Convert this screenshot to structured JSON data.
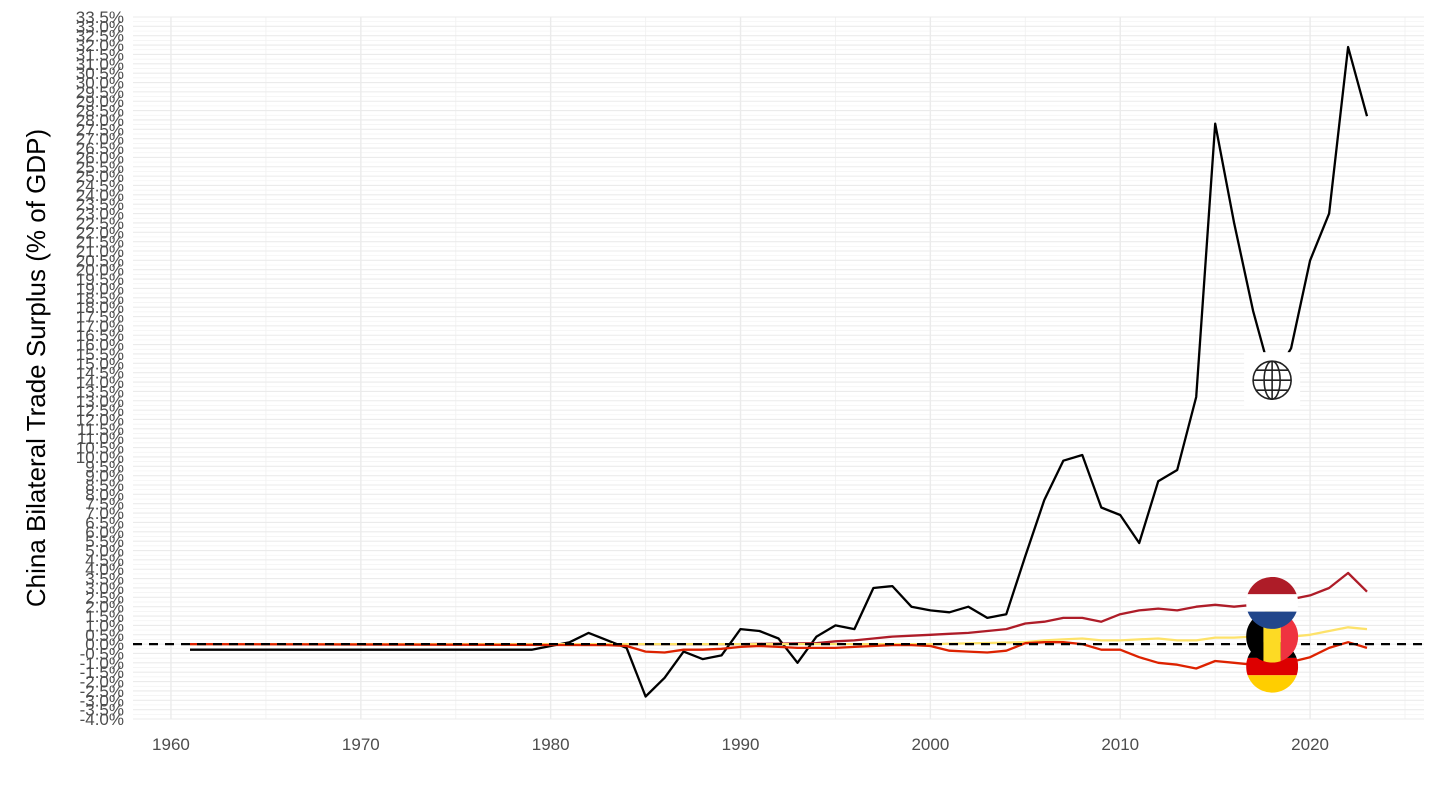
{
  "chart_data": {
    "type": "line",
    "title": "",
    "xlabel": "",
    "ylabel": "China Bilateral Trade Surplus (% of GDP)",
    "xlim": [
      1958,
      2026
    ],
    "ylim": [
      -4.0,
      33.5
    ],
    "x_ticks": [
      1960,
      1970,
      1980,
      1990,
      2000,
      2010,
      2020
    ],
    "x_tick_labels": [
      "1960",
      "1970",
      "1980",
      "1990",
      "2000",
      "2010",
      "2020"
    ],
    "y_ticks": [
      -4.0,
      -3.5,
      -3.0,
      -2.5,
      -2.0,
      -1.5,
      -1.0,
      -0.5,
      0.0,
      0.5,
      1.0,
      1.5,
      2.0,
      2.5,
      3.0,
      3.5,
      4.0,
      4.5,
      5.0,
      5.5,
      6.0,
      6.5,
      7.0,
      7.5,
      8.0,
      8.5,
      9.0,
      9.5,
      10.0,
      10.5,
      11.0,
      11.5,
      12.0,
      12.5,
      13.0,
      13.5,
      14.0,
      14.5,
      15.0,
      15.5,
      16.0,
      16.5,
      17.0,
      17.5,
      18.0,
      18.5,
      19.0,
      19.5,
      20.0,
      20.5,
      21.0,
      21.5,
      22.0,
      22.5,
      23.0,
      23.5,
      24.0,
      24.5,
      25.0,
      25.5,
      26.0,
      26.5,
      27.0,
      27.5,
      28.0,
      28.5,
      29.0,
      29.5,
      30.0,
      30.5,
      31.0,
      31.5,
      32.0,
      32.5,
      33.0,
      33.5
    ],
    "y_tick_labels": [
      "-4.0%",
      "-3.5%",
      "-3.0%",
      "-2.5%",
      "-2.0%",
      "-1.5%",
      "-1.0%",
      "-0.5%",
      "0.0%",
      "0.5%",
      "1.0%",
      "1.5%",
      "2.0%",
      "2.5%",
      "3.0%",
      "3.5%",
      "4.0%",
      "4.5%",
      "5.0%",
      "5.5%",
      "6.0%",
      "6.5%",
      "7.0%",
      "7.5%",
      "8.0%",
      "8.5%",
      "9.0%",
      "9.5%",
      "10.0%",
      "10.5%",
      "11.0%",
      "11.5%",
      "12.0%",
      "12.5%",
      "13.0%",
      "13.5%",
      "14.0%",
      "14.5%",
      "15.0%",
      "15.5%",
      "16.0%",
      "16.5%",
      "17.0%",
      "17.5%",
      "18.0%",
      "18.5%",
      "19.0%",
      "19.5%",
      "20.0%",
      "20.5%",
      "21.0%",
      "21.5%",
      "22.0%",
      "22.5%",
      "23.0%",
      "23.5%",
      "24.0%",
      "24.5%",
      "25.0%",
      "25.5%",
      "26.0%",
      "26.5%",
      "27.0%",
      "27.5%",
      "28.0%",
      "28.5%",
      "29.0%",
      "29.5%",
      "30.0%",
      "30.5%",
      "31.0%",
      "31.5%",
      "32.0%",
      "32.5%",
      "33.0%",
      "33.5%"
    ],
    "reference_line": {
      "y": 0,
      "style": "dashed",
      "color": "#000000"
    },
    "grid": true,
    "legend": "none",
    "series": [
      {
        "color": "#000000",
        "marker_icon": "globe-icon",
        "x": [
          1961,
          1979,
          1980,
          1981,
          1982,
          1983,
          1984,
          1985,
          1986,
          1987,
          1988,
          1989,
          1990,
          1991,
          1992,
          1993,
          1994,
          1995,
          1996,
          1997,
          1998,
          1999,
          2000,
          2001,
          2002,
          2003,
          2004,
          2005,
          2006,
          2007,
          2008,
          2009,
          2010,
          2011,
          2012,
          2013,
          2014,
          2015,
          2016,
          2017,
          2018,
          2019,
          2020,
          2021,
          2022,
          2023
        ],
        "y": [
          -0.3,
          -0.3,
          -0.1,
          0.1,
          0.6,
          0.2,
          -0.2,
          -2.8,
          -1.8,
          -0.4,
          -0.8,
          -0.6,
          0.8,
          0.7,
          0.3,
          -1.0,
          0.4,
          1.0,
          0.8,
          3.0,
          3.1,
          2.0,
          1.8,
          1.7,
          2.0,
          1.4,
          1.6,
          4.7,
          7.7,
          9.8,
          10.1,
          7.3,
          6.9,
          5.4,
          8.7,
          9.3,
          13.2,
          27.8,
          22.5,
          17.8,
          14.1,
          15.8,
          20.5,
          23.0,
          31.9,
          28.2
        ]
      },
      {
        "color": "#ae1c28",
        "marker_icon": "netherlands-flag-icon",
        "x": [
          1961,
          1990,
          1994,
          1995,
          1996,
          1997,
          1998,
          1999,
          2000,
          2001,
          2002,
          2003,
          2004,
          2005,
          2006,
          2007,
          2008,
          2009,
          2010,
          2011,
          2012,
          2013,
          2014,
          2015,
          2016,
          2017,
          2018,
          2019,
          2020,
          2021,
          2022,
          2023
        ],
        "y": [
          0.0,
          0.0,
          0.05,
          0.15,
          0.2,
          0.3,
          0.4,
          0.45,
          0.5,
          0.55,
          0.6,
          0.7,
          0.8,
          1.1,
          1.2,
          1.4,
          1.4,
          1.2,
          1.6,
          1.8,
          1.9,
          1.8,
          2.0,
          2.1,
          2.0,
          2.1,
          2.2,
          2.4,
          2.6,
          3.0,
          3.8,
          2.8
        ]
      },
      {
        "color": "#fde26a",
        "marker_icon": "belgium-flag-icon",
        "x": [
          1961,
          1995,
          2000,
          2005,
          2006,
          2007,
          2008,
          2009,
          2010,
          2011,
          2012,
          2013,
          2014,
          2015,
          2016,
          2017,
          2018,
          2019,
          2020,
          2021,
          2022,
          2023
        ],
        "y": [
          0.0,
          0.0,
          0.0,
          0.1,
          0.2,
          0.25,
          0.3,
          0.2,
          0.2,
          0.25,
          0.3,
          0.2,
          0.2,
          0.35,
          0.35,
          0.4,
          0.4,
          0.4,
          0.5,
          0.7,
          0.9,
          0.8
        ]
      },
      {
        "color": "#dd2200",
        "marker_icon": "germany-flag-icon",
        "x": [
          1961,
          1983,
          1984,
          1985,
          1986,
          1987,
          1988,
          1989,
          1990,
          1991,
          1992,
          1993,
          1994,
          1995,
          1996,
          1997,
          1998,
          1999,
          2000,
          2001,
          2002,
          2003,
          2004,
          2005,
          2006,
          2007,
          2008,
          2009,
          2010,
          2011,
          2012,
          2013,
          2014,
          2015,
          2016,
          2017,
          2018,
          2019,
          2020,
          2021,
          2022,
          2023
        ],
        "y": [
          0.0,
          -0.05,
          -0.1,
          -0.4,
          -0.45,
          -0.3,
          -0.3,
          -0.25,
          -0.15,
          -0.1,
          -0.15,
          -0.2,
          -0.2,
          -0.2,
          -0.15,
          -0.1,
          -0.05,
          -0.05,
          -0.1,
          -0.35,
          -0.4,
          -0.45,
          -0.35,
          0.05,
          0.1,
          0.1,
          0.0,
          -0.3,
          -0.3,
          -0.7,
          -1.0,
          -1.1,
          -1.3,
          -0.9,
          -1.0,
          -1.1,
          -1.2,
          -0.95,
          -0.7,
          -0.2,
          0.1,
          -0.2
        ]
      }
    ]
  }
}
